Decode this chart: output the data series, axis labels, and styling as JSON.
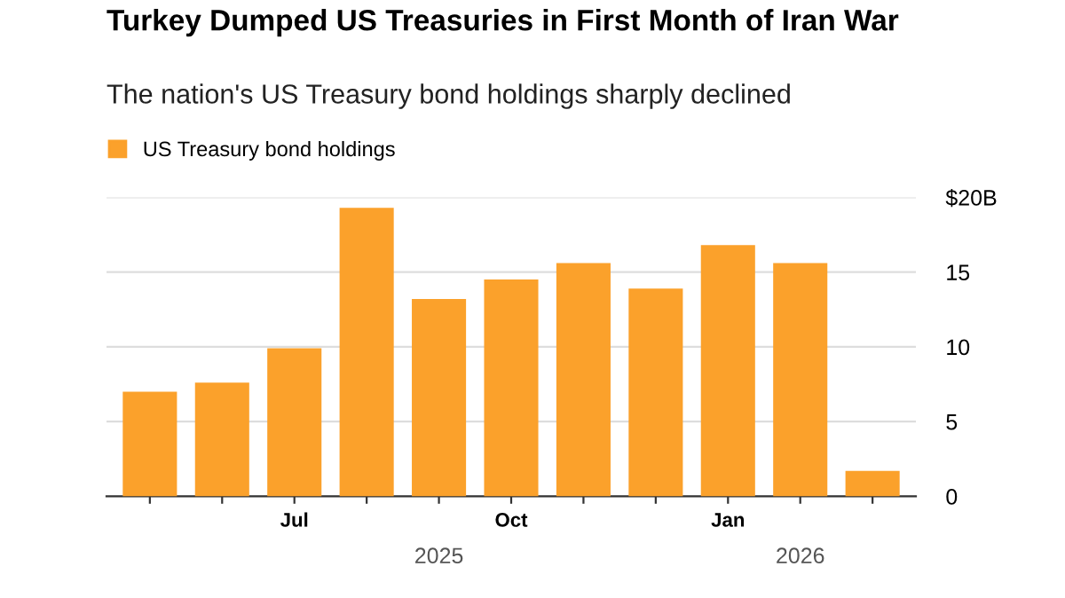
{
  "chart_data": {
    "type": "bar",
    "title": "Turkey Dumped US Treasuries in First Month of Iran War",
    "subtitle": "The nation's US Treasury bond holdings sharply declined",
    "categories": [
      null,
      null,
      "Jul",
      null,
      null,
      "Oct",
      null,
      null,
      "Jan",
      null,
      null
    ],
    "series": [
      {
        "name": "US Treasury bond holdings",
        "color": "#fba12b",
        "values": [
          7.0,
          7.6,
          9.9,
          19.3,
          13.2,
          14.5,
          15.6,
          13.9,
          16.8,
          15.6,
          1.7
        ]
      }
    ],
    "ylim": [
      0,
      20
    ],
    "yticks": [
      0,
      5,
      10,
      15,
      {
        "value": 20,
        "label": "$20B"
      }
    ],
    "annotations": [
      "2025",
      "2026"
    ],
    "grid": "y",
    "legend": "top left"
  }
}
